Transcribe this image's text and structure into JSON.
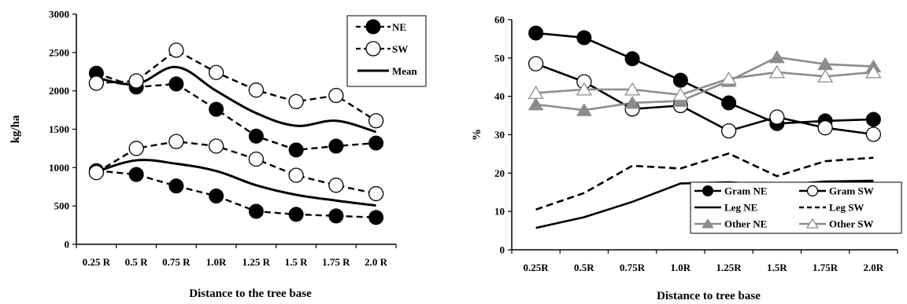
{
  "chart_data": [
    {
      "type": "line",
      "ylabel": "kg/ha",
      "xlabel": "Distance to the tree base",
      "categories": [
        "0.25 R",
        "0.5 R",
        "0.75 R",
        "1.0R",
        "1.25 R",
        "1.5 R",
        "1.75 R",
        "2.0 R"
      ],
      "ylim": [
        0,
        3000
      ],
      "yticks": [
        "0",
        "500",
        "1000",
        "1500",
        "2000",
        "2500",
        "3000"
      ],
      "legend_position": "top-right",
      "series": [
        {
          "name": "NE",
          "group": "upper",
          "style": "dashed-filled",
          "values": [
            2230,
            2050,
            2090,
            1760,
            1410,
            1230,
            1280,
            1320
          ]
        },
        {
          "name": "SW",
          "group": "upper",
          "style": "dashed-open",
          "values": [
            2100,
            2130,
            2530,
            2240,
            2010,
            1860,
            1940,
            1610
          ]
        },
        {
          "name": "Mean",
          "group": "upper",
          "style": "solid",
          "values": [
            2170,
            2090,
            2310,
            2000,
            1710,
            1545,
            1610,
            1465
          ]
        },
        {
          "name": "NE",
          "group": "lower",
          "style": "dashed-filled",
          "values": [
            960,
            910,
            760,
            630,
            430,
            390,
            370,
            350
          ]
        },
        {
          "name": "SW",
          "group": "lower",
          "style": "dashed-open",
          "values": [
            935,
            1250,
            1340,
            1280,
            1110,
            900,
            770,
            660
          ]
        },
        {
          "name": "Mean",
          "group": "lower",
          "style": "solid",
          "values": [
            945,
            1095,
            1050,
            955,
            770,
            645,
            570,
            505
          ]
        }
      ]
    },
    {
      "type": "line",
      "ylabel": "%",
      "xlabel": "Distance to tree base",
      "categories": [
        "0.25R",
        "0.5R",
        "0.75R",
        "1.0R",
        "1.25R",
        "1.5R",
        "1.75R",
        "2.0R"
      ],
      "ylim": [
        0,
        60
      ],
      "yticks": [
        "0",
        "10",
        "20",
        "30",
        "40",
        "50",
        "60"
      ],
      "legend_position": "bottom-right",
      "series": [
        {
          "name": "Gram NE",
          "style": "solid-black-filled",
          "values": [
            56.5,
            55.3,
            49.8,
            44.2,
            38.3,
            32.9,
            33.6,
            34.0
          ]
        },
        {
          "name": "Gram SW",
          "style": "solid-black-open",
          "values": [
            48.5,
            43.8,
            36.7,
            37.6,
            31.0,
            34.6,
            31.8,
            30.1
          ]
        },
        {
          "name": "Leg NE",
          "style": "solid-black",
          "values": [
            5.7,
            8.5,
            12.5,
            17.3,
            17.6,
            16.9,
            17.8,
            18.0
          ]
        },
        {
          "name": "Leg SW",
          "style": "dashed-black",
          "values": [
            10.5,
            14.8,
            21.9,
            21.2,
            25.1,
            19.2,
            23.1,
            24.0
          ]
        },
        {
          "name": "Other NE",
          "style": "solid-gray-filled",
          "values": [
            37.9,
            36.4,
            38.3,
            38.8,
            44.0,
            50.2,
            48.4,
            47.8
          ]
        },
        {
          "name": "Other SW",
          "style": "solid-gray-open",
          "values": [
            40.9,
            41.8,
            41.8,
            40.4,
            44.6,
            46.3,
            45.2,
            46.3
          ]
        }
      ]
    }
  ]
}
